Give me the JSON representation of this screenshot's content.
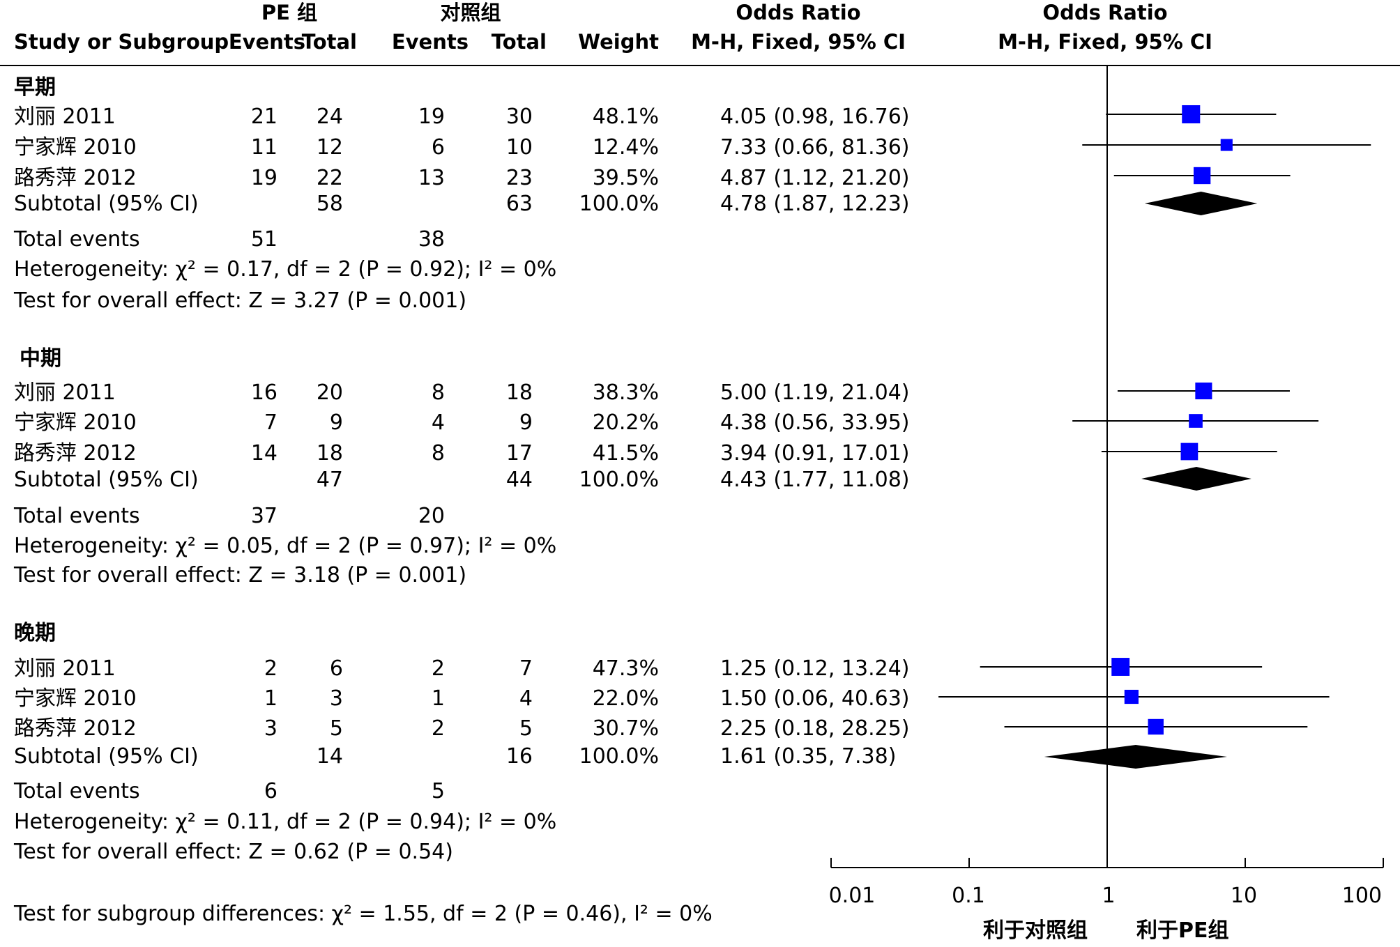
{
  "header": {
    "group1_name": "PE 组",
    "group2_name": "对照组",
    "study_col": "Study or Subgroup",
    "events_label": "Events",
    "total_label": "Total",
    "weight_label": "Weight",
    "or_title": "Odds Ratio",
    "or_method": "M-H, Fixed, 95% CI",
    "plot_title": "Odds Ratio",
    "plot_method": "M-H, Fixed, 95% CI"
  },
  "colors": {
    "square": "#0000FF",
    "diamond": "#000000",
    "line": "#000000"
  },
  "subgroups": [
    {
      "name": "早期",
      "studies": [
        {
          "study": "刘丽 2011",
          "e1": "21",
          "t1": "24",
          "e2": "19",
          "t2": "30",
          "weight": "48.1%",
          "ci": "4.05 (0.98, 16.76)"
        },
        {
          "study": "宁家辉 2010",
          "e1": "11",
          "t1": "12",
          "e2": "6",
          "t2": "10",
          "weight": "12.4%",
          "ci": "7.33 (0.66, 81.36)"
        },
        {
          "study": "路秀萍 2012",
          "e1": "19",
          "t1": "22",
          "e2": "13",
          "t2": "23",
          "weight": "39.5%",
          "ci": "4.87 (1.12, 21.20)"
        }
      ],
      "subtotal": {
        "label": "Subtotal (95% CI)",
        "t1": "58",
        "t2": "63",
        "weight": "100.0%",
        "ci": "4.78 (1.87, 12.23)"
      },
      "total_events": {
        "label": "Total events",
        "e1": "51",
        "e2": "38"
      },
      "heterogeneity": "Heterogeneity: χ² = 0.17, df = 2 (P = 0.92); I² = 0%",
      "overall_effect": "Test for overall effect: Z = 3.27 (P = 0.001)"
    },
    {
      "name": "中期",
      "studies": [
        {
          "study": "刘丽 2011",
          "e1": "16",
          "t1": "20",
          "e2": "8",
          "t2": "18",
          "weight": "38.3%",
          "ci": "5.00 (1.19, 21.04)"
        },
        {
          "study": "宁家辉 2010",
          "e1": "7",
          "t1": "9",
          "e2": "4",
          "t2": "9",
          "weight": "20.2%",
          "ci": "4.38 (0.56, 33.95)"
        },
        {
          "study": "路秀萍 2012",
          "e1": "14",
          "t1": "18",
          "e2": "8",
          "t2": "17",
          "weight": "41.5%",
          "ci": "3.94 (0.91, 17.01)"
        }
      ],
      "subtotal": {
        "label": "Subtotal (95% CI)",
        "t1": "47",
        "t2": "44",
        "weight": "100.0%",
        "ci": "4.43 (1.77, 11.08)"
      },
      "total_events": {
        "label": "Total events",
        "e1": "37",
        "e2": "20"
      },
      "heterogeneity": "Heterogeneity: χ² = 0.05, df = 2 (P = 0.97); I² = 0%",
      "overall_effect": "Test for overall effect: Z = 3.18 (P = 0.001)"
    },
    {
      "name": "晚期",
      "studies": [
        {
          "study": "刘丽 2011",
          "e1": "2",
          "t1": "6",
          "e2": "2",
          "t2": "7",
          "weight": "47.3%",
          "ci": "1.25 (0.12, 13.24)"
        },
        {
          "study": "宁家辉 2010",
          "e1": "1",
          "t1": "3",
          "e2": "1",
          "t2": "4",
          "weight": "22.0%",
          "ci": "1.50 (0.06, 40.63)"
        },
        {
          "study": "路秀萍 2012",
          "e1": "3",
          "t1": "5",
          "e2": "2",
          "t2": "5",
          "weight": "30.7%",
          "ci": "2.25 (0.18, 28.25)"
        }
      ],
      "subtotal": {
        "label": "Subtotal (95% CI)",
        "t1": "14",
        "t2": "16",
        "weight": "100.0%",
        "ci": "1.61 (0.35, 7.38)"
      },
      "total_events": {
        "label": "Total events",
        "e1": "6",
        "e2": "5"
      },
      "heterogeneity": "Heterogeneity: χ² = 0.11, df = 2 (P = 0.94); I² = 0%",
      "overall_effect": "Test for overall effect: Z = 0.62 (P = 0.54)"
    }
  ],
  "subgroup_differences": "Test for subgroup differences: χ² = 1.55, df = 2 (P = 0.46), I² = 0%",
  "axis": {
    "ticks": [
      "0.01",
      "0.1",
      "1",
      "10",
      "100"
    ],
    "favours_left": "利于对照组",
    "favours_right": "利于PE组"
  },
  "chart_data": {
    "type": "forest",
    "xscale": "log",
    "xlim": [
      0.01,
      100
    ],
    "reference_line": 1,
    "series": [
      {
        "name": "早期",
        "studies": [
          {
            "study": "刘丽 2011",
            "or": 4.05,
            "lo": 0.98,
            "hi": 16.76,
            "weight": 48.1
          },
          {
            "study": "宁家辉 2010",
            "or": 7.33,
            "lo": 0.66,
            "hi": 81.36,
            "weight": 12.4
          },
          {
            "study": "路秀萍 2012",
            "or": 4.87,
            "lo": 1.12,
            "hi": 21.2,
            "weight": 39.5
          }
        ],
        "subtotal": {
          "or": 4.78,
          "lo": 1.87,
          "hi": 12.23
        }
      },
      {
        "name": "中期",
        "studies": [
          {
            "study": "刘丽 2011",
            "or": 5.0,
            "lo": 1.19,
            "hi": 21.04,
            "weight": 38.3
          },
          {
            "study": "宁家辉 2010",
            "or": 4.38,
            "lo": 0.56,
            "hi": 33.95,
            "weight": 20.2
          },
          {
            "study": "路秀萍 2012",
            "or": 3.94,
            "lo": 0.91,
            "hi": 17.01,
            "weight": 41.5
          }
        ],
        "subtotal": {
          "or": 4.43,
          "lo": 1.77,
          "hi": 11.08
        }
      },
      {
        "name": "晚期",
        "studies": [
          {
            "study": "刘丽 2011",
            "or": 1.25,
            "lo": 0.12,
            "hi": 13.24,
            "weight": 47.3
          },
          {
            "study": "宁家辉 2010",
            "or": 1.5,
            "lo": 0.06,
            "hi": 40.63,
            "weight": 22.0
          },
          {
            "study": "路秀萍 2012",
            "or": 2.25,
            "lo": 0.18,
            "hi": 28.25,
            "weight": 30.7
          }
        ],
        "subtotal": {
          "or": 1.61,
          "lo": 0.35,
          "hi": 7.38
        }
      }
    ]
  }
}
